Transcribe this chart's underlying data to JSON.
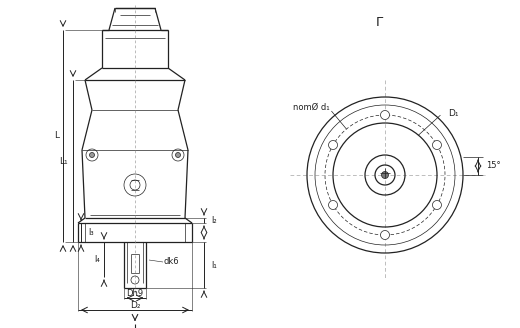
{
  "bg_color": "#ffffff",
  "line_color": "#222222",
  "thin_line": 0.5,
  "medium_line": 0.9,
  "thick_line": 1.4,
  "label_L": "L",
  "label_L1": "L₁",
  "label_l2": "l₂",
  "label_l3": "l₃",
  "label_l4": "l₄",
  "label_l1": "l₁",
  "label_dk6": "dk6",
  "label_Dh9": "Dh9",
  "label_D2": "D₂",
  "label_D1": "D₁",
  "label_nomdi": "nomØ d₁",
  "label_15": "15°",
  "label_Gamma": "Г",
  "font_size": 6.5
}
